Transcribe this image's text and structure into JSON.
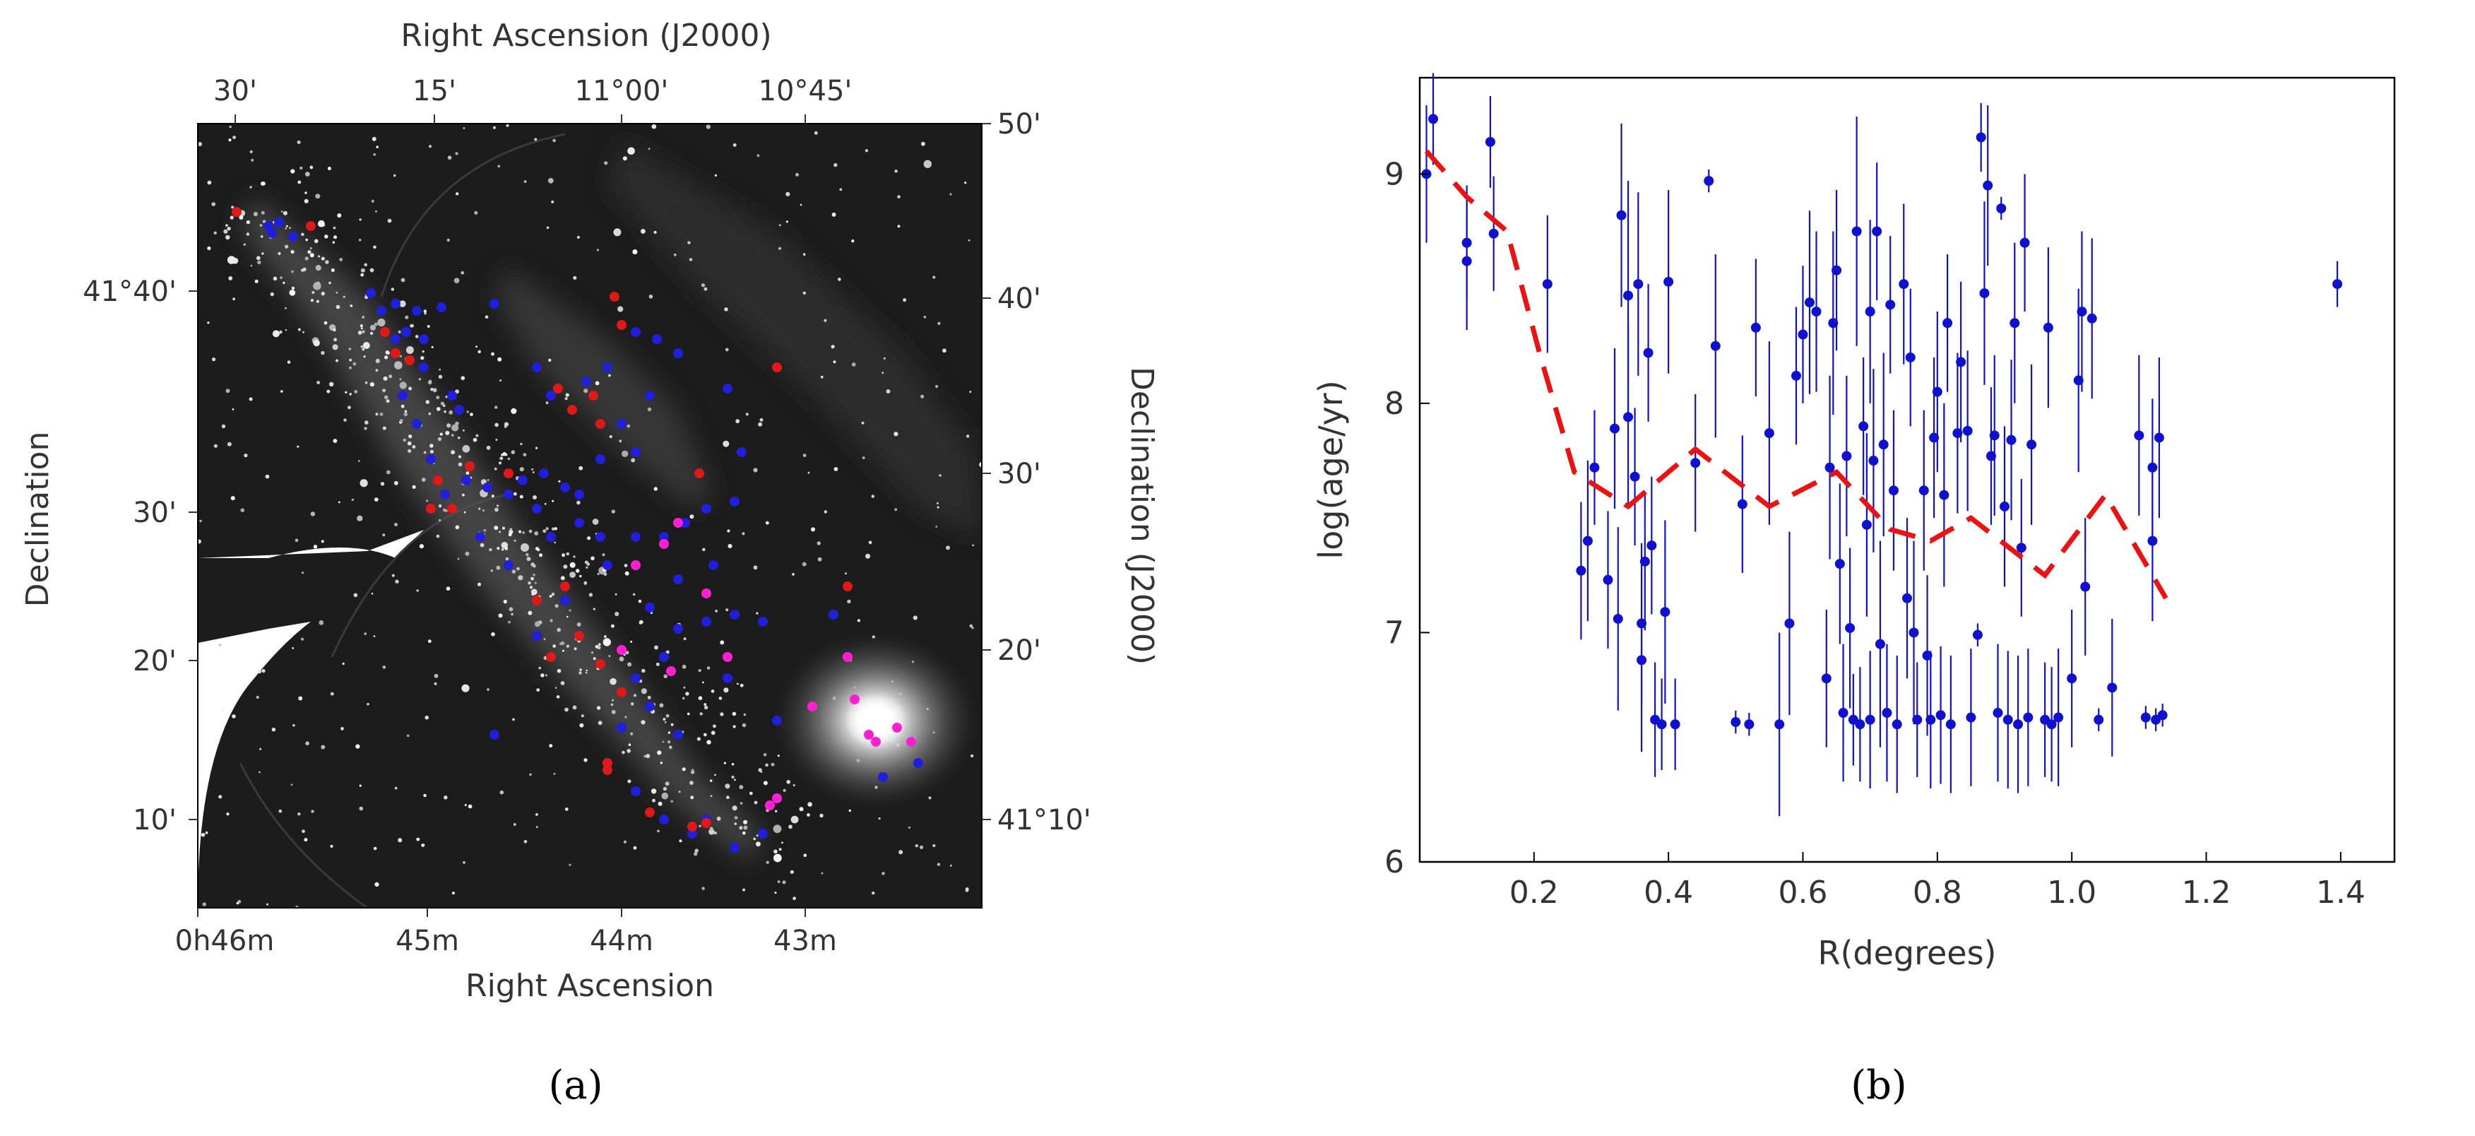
{
  "panel_a": {
    "caption": "(a)",
    "bottom_axis_label": "Right Ascension",
    "top_axis_label": "Right Ascension (J2000)",
    "left_axis_label": "Declination",
    "right_axis_label": "Declination (J2000)",
    "top_ticks": [
      "30'",
      "15'",
      "11°00'",
      "10°45'"
    ],
    "bottom_ticks": [
      "0h46m",
      "45m",
      "44m",
      "43m"
    ],
    "left_ticks": [
      "41°40'",
      "30'",
      "20'",
      "10'"
    ],
    "right_ticks": [
      "50'",
      "40'",
      "30'",
      "20'",
      "41°10'"
    ],
    "marker_colors": {
      "blue": "#1f1fdc",
      "red": "#e01818",
      "magenta": "#ff1fd2"
    }
  },
  "chart_data": {
    "type": "scatter",
    "caption": "(b)",
    "xlabel": "R(degrees)",
    "ylabel": "log(age/yr)",
    "xlim": [
      0.03,
      1.48
    ],
    "ylim": [
      6.0,
      9.42
    ],
    "xticks": [
      0.2,
      0.4,
      0.6,
      0.8,
      1.0,
      1.2,
      1.4
    ],
    "yticks": [
      6,
      7,
      8,
      9
    ],
    "grid": false,
    "series": [
      {
        "kind": "points_with_errorbars",
        "color": "#1010d0",
        "points": [
          {
            "x": 0.04,
            "y": 9.0,
            "e": 0.3
          },
          {
            "x": 0.05,
            "y": 9.24,
            "e": 0.2
          },
          {
            "x": 0.1,
            "y": 8.7,
            "e": 0.25
          },
          {
            "x": 0.1,
            "y": 8.62,
            "e": 0.3
          },
          {
            "x": 0.135,
            "y": 9.14,
            "e": 0.2
          },
          {
            "x": 0.14,
            "y": 8.74,
            "e": 0.25
          },
          {
            "x": 0.22,
            "y": 8.52,
            "e": 0.3
          },
          {
            "x": 0.27,
            "y": 7.27,
            "e": 0.3
          },
          {
            "x": 0.28,
            "y": 7.4,
            "e": 0.35
          },
          {
            "x": 0.29,
            "y": 7.72,
            "e": 0.25
          },
          {
            "x": 0.31,
            "y": 7.23,
            "e": 0.3
          },
          {
            "x": 0.32,
            "y": 7.89,
            "e": 0.35
          },
          {
            "x": 0.325,
            "y": 7.06,
            "e": 0.4
          },
          {
            "x": 0.33,
            "y": 8.82,
            "e": 0.4
          },
          {
            "x": 0.34,
            "y": 8.47,
            "e": 0.5
          },
          {
            "x": 0.34,
            "y": 7.94,
            "e": 0.4
          },
          {
            "x": 0.35,
            "y": 7.68,
            "e": 0.3
          },
          {
            "x": 0.355,
            "y": 8.52,
            "e": 0.4
          },
          {
            "x": 0.36,
            "y": 6.88,
            "e": 0.4
          },
          {
            "x": 0.36,
            "y": 7.04,
            "e": 0.35
          },
          {
            "x": 0.365,
            "y": 7.31,
            "e": 0.3
          },
          {
            "x": 0.37,
            "y": 8.22,
            "e": 0.3
          },
          {
            "x": 0.375,
            "y": 7.38,
            "e": 0.3
          },
          {
            "x": 0.38,
            "y": 6.62,
            "e": 0.25
          },
          {
            "x": 0.39,
            "y": 6.6,
            "e": 0.2
          },
          {
            "x": 0.395,
            "y": 7.09,
            "e": 0.4
          },
          {
            "x": 0.4,
            "y": 8.53,
            "e": 0.4
          },
          {
            "x": 0.41,
            "y": 6.6,
            "e": 0.2
          },
          {
            "x": 0.44,
            "y": 7.74,
            "e": 0.3
          },
          {
            "x": 0.46,
            "y": 8.97,
            "e": 0.05
          },
          {
            "x": 0.47,
            "y": 8.25,
            "e": 0.4
          },
          {
            "x": 0.5,
            "y": 6.61,
            "e": 0.05
          },
          {
            "x": 0.51,
            "y": 7.56,
            "e": 0.3
          },
          {
            "x": 0.52,
            "y": 6.6,
            "e": 0.05
          },
          {
            "x": 0.53,
            "y": 8.33,
            "e": 0.3
          },
          {
            "x": 0.55,
            "y": 7.87,
            "e": 0.4
          },
          {
            "x": 0.565,
            "y": 6.6,
            "e": 0.4
          },
          {
            "x": 0.58,
            "y": 7.04,
            "e": 0.4
          },
          {
            "x": 0.59,
            "y": 8.12,
            "e": 0.3
          },
          {
            "x": 0.6,
            "y": 8.3,
            "e": 0.3
          },
          {
            "x": 0.61,
            "y": 8.44,
            "e": 0.4
          },
          {
            "x": 0.62,
            "y": 8.4,
            "e": 0.35
          },
          {
            "x": 0.635,
            "y": 6.8,
            "e": 0.3
          },
          {
            "x": 0.64,
            "y": 7.72,
            "e": 0.4
          },
          {
            "x": 0.645,
            "y": 8.35,
            "e": 0.4
          },
          {
            "x": 0.65,
            "y": 8.58,
            "e": 0.35
          },
          {
            "x": 0.655,
            "y": 7.3,
            "e": 0.35
          },
          {
            "x": 0.66,
            "y": 6.65,
            "e": 0.3
          },
          {
            "x": 0.665,
            "y": 7.77,
            "e": 0.35
          },
          {
            "x": 0.67,
            "y": 7.02,
            "e": 0.35
          },
          {
            "x": 0.675,
            "y": 6.62,
            "e": 0.2
          },
          {
            "x": 0.68,
            "y": 8.75,
            "e": 0.5
          },
          {
            "x": 0.685,
            "y": 6.6,
            "e": 0.25
          },
          {
            "x": 0.69,
            "y": 7.9,
            "e": 0.3
          },
          {
            "x": 0.695,
            "y": 7.47,
            "e": 0.4
          },
          {
            "x": 0.7,
            "y": 6.62,
            "e": 0.3
          },
          {
            "x": 0.7,
            "y": 8.4,
            "e": 0.4
          },
          {
            "x": 0.705,
            "y": 7.75,
            "e": 0.4
          },
          {
            "x": 0.71,
            "y": 8.75,
            "e": 0.3
          },
          {
            "x": 0.715,
            "y": 6.95,
            "e": 0.45
          },
          {
            "x": 0.72,
            "y": 7.82,
            "e": 0.4
          },
          {
            "x": 0.725,
            "y": 6.65,
            "e": 0.3
          },
          {
            "x": 0.73,
            "y": 8.43,
            "e": 0.3
          },
          {
            "x": 0.735,
            "y": 7.62,
            "e": 0.35
          },
          {
            "x": 0.74,
            "y": 6.6,
            "e": 0.3
          },
          {
            "x": 0.75,
            "y": 8.52,
            "e": 0.35
          },
          {
            "x": 0.755,
            "y": 7.15,
            "e": 0.35
          },
          {
            "x": 0.76,
            "y": 8.2,
            "e": 0.3
          },
          {
            "x": 0.765,
            "y": 7.0,
            "e": 0.4
          },
          {
            "x": 0.77,
            "y": 6.62,
            "e": 0.25
          },
          {
            "x": 0.78,
            "y": 7.62,
            "e": 0.35
          },
          {
            "x": 0.785,
            "y": 6.9,
            "e": 0.35
          },
          {
            "x": 0.79,
            "y": 6.62,
            "e": 0.3
          },
          {
            "x": 0.795,
            "y": 7.85,
            "e": 0.35
          },
          {
            "x": 0.8,
            "y": 8.05,
            "e": 0.35
          },
          {
            "x": 0.805,
            "y": 6.64,
            "e": 0.3
          },
          {
            "x": 0.81,
            "y": 7.6,
            "e": 0.4
          },
          {
            "x": 0.815,
            "y": 8.35,
            "e": 0.3
          },
          {
            "x": 0.82,
            "y": 6.6,
            "e": 0.3
          },
          {
            "x": 0.83,
            "y": 7.87,
            "e": 0.35
          },
          {
            "x": 0.835,
            "y": 8.18,
            "e": 0.35
          },
          {
            "x": 0.845,
            "y": 7.88,
            "e": 0.35
          },
          {
            "x": 0.85,
            "y": 6.63,
            "e": 0.3
          },
          {
            "x": 0.86,
            "y": 6.99,
            "e": 0.05
          },
          {
            "x": 0.865,
            "y": 9.16,
            "e": 0.15
          },
          {
            "x": 0.87,
            "y": 8.48,
            "e": 0.4
          },
          {
            "x": 0.875,
            "y": 8.95,
            "e": 0.35
          },
          {
            "x": 0.88,
            "y": 7.77,
            "e": 0.3
          },
          {
            "x": 0.885,
            "y": 7.86,
            "e": 0.35
          },
          {
            "x": 0.89,
            "y": 6.65,
            "e": 0.3
          },
          {
            "x": 0.895,
            "y": 8.85,
            "e": 0.05
          },
          {
            "x": 0.9,
            "y": 7.55,
            "e": 0.35
          },
          {
            "x": 0.905,
            "y": 6.62,
            "e": 0.3
          },
          {
            "x": 0.91,
            "y": 7.84,
            "e": 0.35
          },
          {
            "x": 0.915,
            "y": 8.35,
            "e": 0.35
          },
          {
            "x": 0.92,
            "y": 6.6,
            "e": 0.3
          },
          {
            "x": 0.925,
            "y": 7.37,
            "e": 0.3
          },
          {
            "x": 0.93,
            "y": 8.7,
            "e": 0.3
          },
          {
            "x": 0.935,
            "y": 6.63,
            "e": 0.3
          },
          {
            "x": 0.94,
            "y": 7.82,
            "e": 0.35
          },
          {
            "x": 0.96,
            "y": 6.62,
            "e": 0.25
          },
          {
            "x": 0.965,
            "y": 8.33,
            "e": 0.35
          },
          {
            "x": 0.97,
            "y": 6.6,
            "e": 0.25
          },
          {
            "x": 0.98,
            "y": 6.63,
            "e": 0.3
          },
          {
            "x": 1.0,
            "y": 6.8,
            "e": 0.3
          },
          {
            "x": 1.01,
            "y": 8.1,
            "e": 0.4
          },
          {
            "x": 1.015,
            "y": 8.4,
            "e": 0.35
          },
          {
            "x": 1.02,
            "y": 7.2,
            "e": 0.3
          },
          {
            "x": 1.03,
            "y": 8.37,
            "e": 0.35
          },
          {
            "x": 1.04,
            "y": 6.62,
            "e": 0.05
          },
          {
            "x": 1.06,
            "y": 6.76,
            "e": 0.3
          },
          {
            "x": 1.1,
            "y": 7.86,
            "e": 0.35
          },
          {
            "x": 1.11,
            "y": 6.63,
            "e": 0.05
          },
          {
            "x": 1.12,
            "y": 7.4,
            "e": 0.35
          },
          {
            "x": 1.12,
            "y": 7.72,
            "e": 0.3
          },
          {
            "x": 1.125,
            "y": 6.62,
            "e": 0.05
          },
          {
            "x": 1.13,
            "y": 7.85,
            "e": 0.35
          },
          {
            "x": 1.135,
            "y": 6.64,
            "e": 0.05
          },
          {
            "x": 1.395,
            "y": 8.52,
            "e": 0.1
          }
        ]
      },
      {
        "kind": "dashed_trend_line",
        "color": "#ee1111",
        "x": [
          0.04,
          0.1,
          0.16,
          0.21,
          0.26,
          0.34,
          0.44,
          0.55,
          0.65,
          0.73,
          0.79,
          0.85,
          0.96,
          1.05,
          1.14
        ],
        "y": [
          9.1,
          8.9,
          8.75,
          8.2,
          7.7,
          7.55,
          7.8,
          7.55,
          7.7,
          7.45,
          7.4,
          7.5,
          7.25,
          7.6,
          7.15
        ]
      }
    ]
  }
}
